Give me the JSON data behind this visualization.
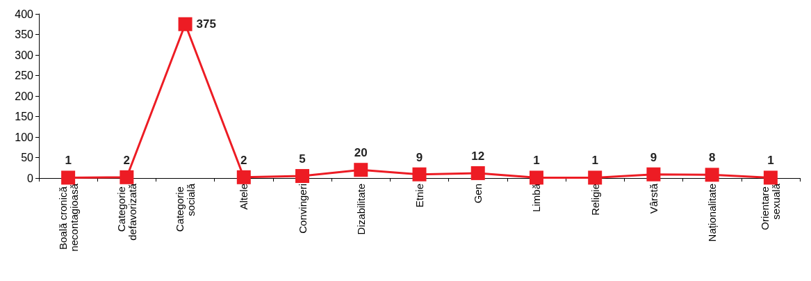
{
  "chart_data": {
    "type": "line",
    "categories": [
      "Boală cronică necontagioasă",
      "Categorie defavorizată",
      "Categorie socială",
      "Altele",
      "Convingeri",
      "Dizabilitate",
      "Etnie",
      "Gen",
      "Limbă",
      "Religie",
      "Vârstă",
      "Naționalitate",
      "Orientare sexuală"
    ],
    "series": [
      {
        "color": "#ed1c24",
        "values": [
          1,
          2,
          375,
          2,
          5,
          20,
          9,
          12,
          1,
          1,
          9,
          8,
          1
        ]
      }
    ],
    "ylim": [
      0,
      400
    ],
    "yticks": [
      0,
      50,
      100,
      150,
      200,
      250,
      300,
      350,
      400
    ],
    "grid": false,
    "marker": "square",
    "line_style": "solid",
    "data_labels": true
  }
}
